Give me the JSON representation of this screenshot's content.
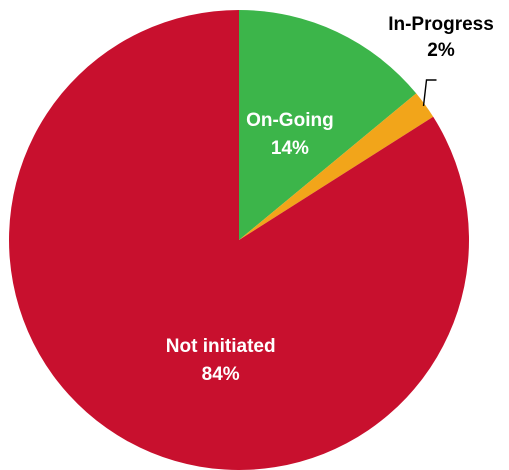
{
  "chart_data": {
    "type": "pie",
    "title": "",
    "slices": [
      {
        "label": "On-Going",
        "value": 14,
        "value_label": "14%",
        "color": "#3cb54a",
        "label_color": "#ffffff",
        "label_position": "inside"
      },
      {
        "label": "In-Progress",
        "value": 2,
        "value_label": "2%",
        "color": "#f2a51a",
        "label_color": "#000000",
        "label_position": "outside-with-leader-line"
      },
      {
        "label": "Not initiated",
        "value": 84,
        "value_label": "84%",
        "color": "#c8102e",
        "label_color": "#ffffff",
        "label_position": "inside"
      }
    ],
    "start": "12 o'clock",
    "direction": "clockwise",
    "legend": "none"
  }
}
